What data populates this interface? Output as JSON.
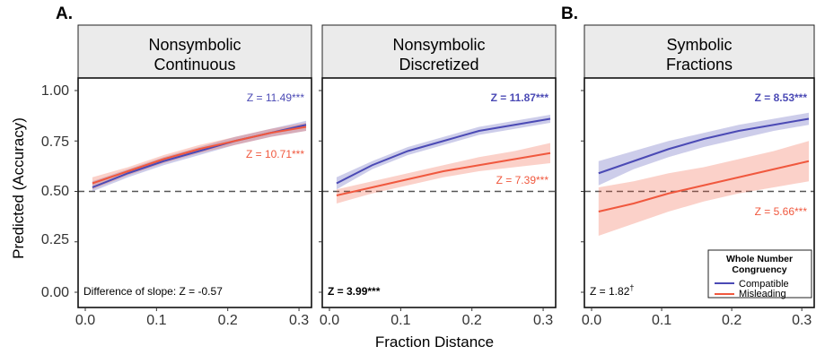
{
  "figure": {
    "ylabel": "Predicted (Accuracy)",
    "xlabel": "Fraction Distance",
    "section_labels": [
      "A.",
      "B."
    ],
    "y_ticks": [
      "0.00",
      "0.25",
      "0.50",
      "0.75",
      "1.00"
    ],
    "x_ticks": [
      "0.0",
      "0.1",
      "0.2",
      "0.3"
    ],
    "legend": {
      "title_line1": "Whole Number",
      "title_line2": "Congruency",
      "items": [
        {
          "label": "Compatible",
          "color": "#4b4ab5"
        },
        {
          "label": "Misleading",
          "color": "#f0583e"
        }
      ]
    }
  },
  "panels": [
    {
      "title_line1": "Nonsymbolic",
      "title_line2": "Continuous",
      "compatible_z": "Z = 11.49***",
      "misleading_z": "Z = 10.71***",
      "bottom_note": "Difference of slope: Z = -0.57",
      "compatible_bold": false,
      "bottom_bold": false
    },
    {
      "title_line1": "Nonsymbolic",
      "title_line2": "Discretized",
      "compatible_z": "Z = 11.87***",
      "misleading_z": "Z = 7.39***",
      "bottom_note": "Z = 3.99***",
      "compatible_bold": true,
      "bottom_bold": true
    },
    {
      "title_line1": "Symbolic",
      "title_line2": "Fractions",
      "compatible_z": "Z = 8.53***",
      "misleading_z": "Z = 5.66***",
      "bottom_note": "Z = 1.82",
      "bottom_note_sup": "†",
      "compatible_bold": true,
      "bottom_bold": false
    }
  ],
  "chart_data": {
    "type": "line",
    "x_label": "Fraction Distance",
    "y_label": "Predicted (Accuracy)",
    "xlim": [
      0.0,
      0.31
    ],
    "ylim": [
      0.0,
      1.0
    ],
    "reference_line_y": 0.5,
    "x": [
      0.01,
      0.06,
      0.11,
      0.16,
      0.21,
      0.26,
      0.31
    ],
    "panels": [
      {
        "panel": "Nonsymbolic Continuous",
        "series": [
          {
            "name": "Compatible",
            "color": "#4b4ab5",
            "values": [
              0.52,
              0.59,
              0.65,
              0.7,
              0.75,
              0.79,
              0.83
            ],
            "lower": [
              0.5,
              0.57,
              0.63,
              0.68,
              0.73,
              0.77,
              0.8
            ],
            "upper": [
              0.55,
              0.61,
              0.67,
              0.72,
              0.77,
              0.81,
              0.85
            ]
          },
          {
            "name": "Misleading",
            "color": "#f0583e",
            "values": [
              0.54,
              0.6,
              0.66,
              0.71,
              0.75,
              0.79,
              0.82
            ],
            "lower": [
              0.51,
              0.58,
              0.64,
              0.69,
              0.73,
              0.77,
              0.8
            ],
            "upper": [
              0.57,
              0.62,
              0.68,
              0.73,
              0.77,
              0.81,
              0.84
            ]
          }
        ]
      },
      {
        "panel": "Nonsymbolic Discretized",
        "series": [
          {
            "name": "Compatible",
            "color": "#4b4ab5",
            "values": [
              0.54,
              0.63,
              0.7,
              0.75,
              0.8,
              0.83,
              0.86
            ],
            "lower": [
              0.51,
              0.61,
              0.68,
              0.73,
              0.78,
              0.81,
              0.84
            ],
            "upper": [
              0.57,
              0.65,
              0.72,
              0.77,
              0.82,
              0.85,
              0.88
            ]
          },
          {
            "name": "Misleading",
            "color": "#f0583e",
            "values": [
              0.48,
              0.52,
              0.56,
              0.6,
              0.63,
              0.66,
              0.69
            ],
            "lower": [
              0.44,
              0.49,
              0.53,
              0.57,
              0.6,
              0.62,
              0.64
            ],
            "upper": [
              0.51,
              0.55,
              0.59,
              0.63,
              0.67,
              0.7,
              0.74
            ]
          }
        ]
      },
      {
        "panel": "Symbolic Fractions",
        "series": [
          {
            "name": "Compatible",
            "color": "#4b4ab5",
            "values": [
              0.59,
              0.65,
              0.71,
              0.76,
              0.8,
              0.83,
              0.86
            ],
            "lower": [
              0.53,
              0.61,
              0.67,
              0.72,
              0.76,
              0.8,
              0.83
            ],
            "upper": [
              0.65,
              0.7,
              0.75,
              0.79,
              0.83,
              0.86,
              0.89
            ]
          },
          {
            "name": "Misleading",
            "color": "#f0583e",
            "values": [
              0.4,
              0.44,
              0.49,
              0.53,
              0.57,
              0.61,
              0.65
            ],
            "lower": [
              0.28,
              0.34,
              0.4,
              0.45,
              0.49,
              0.52,
              0.55
            ],
            "upper": [
              0.52,
              0.55,
              0.59,
              0.62,
              0.66,
              0.7,
              0.75
            ]
          }
        ]
      }
    ]
  }
}
